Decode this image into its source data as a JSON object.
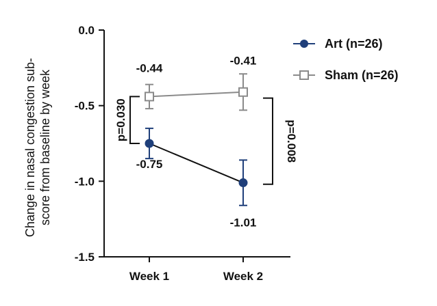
{
  "chart_data": {
    "type": "line",
    "categories": [
      "Week 1",
      "Week 2"
    ],
    "ylabel": "Change in nasal congestion sub-score from baseline by week",
    "ylim": [
      -1.5,
      0.0
    ],
    "yticks": [
      "0.0",
      "-0.5",
      "-1.0",
      "-1.5"
    ],
    "grid": false,
    "legend_position": "top-right",
    "series": [
      {
        "name": "Art (n=26)",
        "values": [
          -0.75,
          -1.01
        ],
        "error": [
          0.1,
          0.15
        ],
        "labels": [
          "-0.75",
          "-1.01"
        ],
        "color": "#1f3f7a",
        "marker": "filled-circle"
      },
      {
        "name": "Sham (n=26)",
        "values": [
          -0.44,
          -0.41
        ],
        "error": [
          0.08,
          0.12
        ],
        "labels": [
          "-0.44",
          "-0.41"
        ],
        "color": "#8a8a8a",
        "marker": "open-square"
      }
    ],
    "annotations": [
      {
        "category": "Week 1",
        "text": "p=0.030"
      },
      {
        "category": "Week 2",
        "text": "p=0.008"
      }
    ]
  }
}
